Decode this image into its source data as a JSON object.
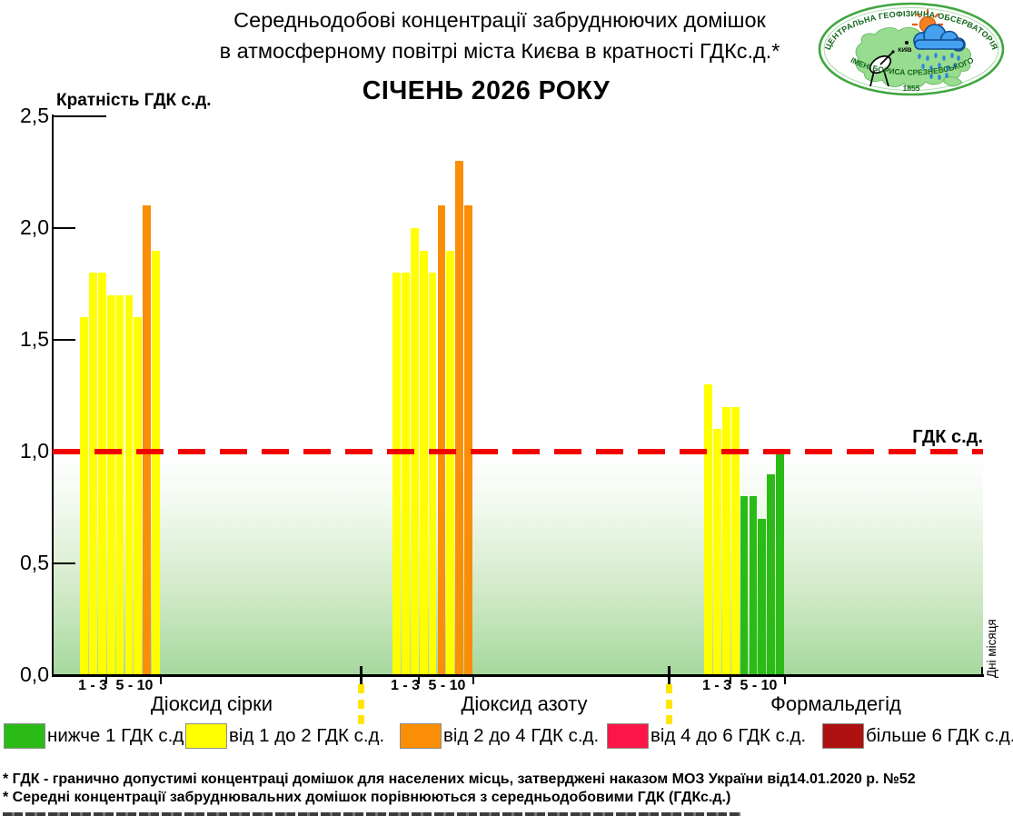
{
  "title": {
    "line1": "Середньодобові концентрації забруднюючих домішок",
    "line2": "в атмосферному повітрі міста Києва в кратності ГДКс.д.*",
    "subtitle": "СІЧЕНЬ 2026 РОКУ"
  },
  "logo": {
    "arc_top": "ЦЕНТРАЛЬНА ГЕОФІЗИЧНА ОБСЕРВАТОРІЯ",
    "arc_bottom": "ІМЕНІ БОРИСА СРЕЗНЕВСЬКОГО",
    "year": "1855",
    "city": "КИЇВ"
  },
  "chart_data": {
    "type": "bar",
    "title": "СІЧЕНЬ 2026 РОКУ",
    "ylabel": "Кратність ГДК с.д.",
    "x_note": "Дні місяця",
    "ylim": [
      0,
      2.5
    ],
    "grid": false,
    "yticks": [
      {
        "v": 2.5,
        "label": "2,5"
      },
      {
        "v": 2.0,
        "label": "2,0"
      },
      {
        "v": 1.5,
        "label": "1,5"
      },
      {
        "v": 1.0,
        "label": "1,0"
      },
      {
        "v": 0.5,
        "label": "0,5"
      },
      {
        "v": 0.0,
        "label": "0,0"
      }
    ],
    "reference_line": {
      "value": 1.0,
      "label": "ГДК с.д.",
      "color": "#f20000"
    },
    "day_range_labels": [
      "1 - 3",
      "5 - 10"
    ],
    "level_colors": {
      "below1": "#2bbb17",
      "1to2": "#ffff00",
      "2to4": "#fa8e06",
      "4to6": "#fb1648",
      "above6": "#ae0f0f"
    },
    "groups": [
      {
        "name": "Діоксид сірки",
        "values": [
          1.6,
          1.8,
          1.8,
          1.7,
          1.7,
          1.7,
          1.6,
          2.1,
          1.9
        ],
        "levels": [
          "1to2",
          "1to2",
          "1to2",
          "1to2",
          "1to2",
          "1to2",
          "1to2",
          "2to4",
          "1to2"
        ]
      },
      {
        "name": "Діоксид азоту",
        "values": [
          1.8,
          1.8,
          2.0,
          1.9,
          1.8,
          2.1,
          1.9,
          2.3,
          2.1
        ],
        "levels": [
          "1to2",
          "1to2",
          "1to2",
          "1to2",
          "1to2",
          "2to4",
          "1to2",
          "2to4",
          "2to4"
        ]
      },
      {
        "name": "Формальдегід",
        "values": [
          1.3,
          1.1,
          1.2,
          1.2,
          0.8,
          0.8,
          0.7,
          0.9,
          1.0
        ],
        "levels": [
          "1to2",
          "1to2",
          "1to2",
          "1to2",
          "below1",
          "below1",
          "below1",
          "below1",
          "below1"
        ]
      }
    ]
  },
  "legend": {
    "items": [
      {
        "level": "below1",
        "label": "нижче 1 ГДК с.д."
      },
      {
        "level": "1to2",
        "label": "від 1 до 2 ГДК с.д."
      },
      {
        "level": "2to4",
        "label": "від 2 до 4 ГДК с.д."
      },
      {
        "level": "4to6",
        "label": "від 4 до 6 ГДК с.д."
      },
      {
        "level": "above6",
        "label": "більше 6 ГДК с.д."
      }
    ]
  },
  "footnotes": [
    "* ГДК - гранично допустимі концентраці домішок для населених місць, затверджені наказом МОЗ України від14.01.2020 р. №52",
    "* Середні концентрації забруднювальних домішок порівнюються з середньодобовими  ГДК (ГДКс.д.)"
  ]
}
